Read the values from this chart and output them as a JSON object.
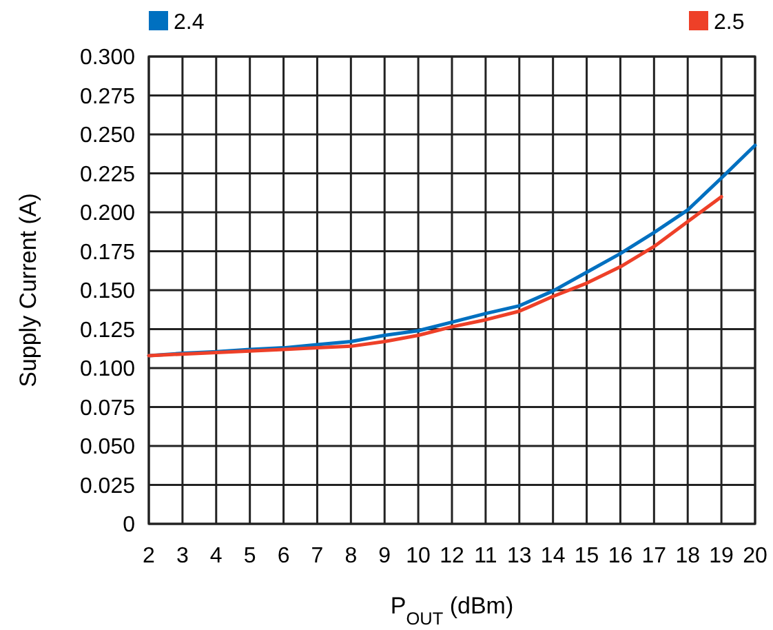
{
  "chart_data": {
    "type": "line",
    "xlabel": "P$_{OUT}$ (dBm)",
    "ylabel": "Supply Current (A)",
    "categories": [
      "2",
      "3",
      "4",
      "5",
      "6",
      "7",
      "8",
      "9",
      "10",
      "12",
      "11",
      "13",
      "14",
      "15",
      "16",
      "17",
      "18",
      "19",
      "20"
    ],
    "series": [
      {
        "name": "2.4",
        "color": "#0070c0",
        "values": [
          0.108,
          0.1095,
          0.1105,
          0.112,
          0.113,
          0.115,
          0.117,
          0.121,
          0.124,
          0.1295,
          0.135,
          0.14,
          0.1495,
          0.1615,
          0.1735,
          0.187,
          0.2015,
          0.222,
          0.243
        ]
      },
      {
        "name": "2.5",
        "color": "#ee4028",
        "values": [
          0.108,
          0.109,
          0.11,
          0.111,
          0.112,
          0.113,
          0.114,
          0.117,
          0.121,
          0.1265,
          0.131,
          0.1365,
          0.146,
          0.1545,
          0.165,
          0.178,
          0.194,
          0.21,
          null
        ]
      }
    ],
    "ylim": [
      0,
      0.3
    ],
    "yticks": [
      {
        "value": 0,
        "label": "0"
      },
      {
        "value": 0.025,
        "label": "0.025"
      },
      {
        "value": 0.05,
        "label": "0.050"
      },
      {
        "value": 0.075,
        "label": "0.075"
      },
      {
        "value": 0.1,
        "label": "0.100"
      },
      {
        "value": 0.125,
        "label": "0.125"
      },
      {
        "value": 0.15,
        "label": "0.150"
      },
      {
        "value": 0.175,
        "label": "0.175"
      },
      {
        "value": 0.2,
        "label": "0.200"
      },
      {
        "value": 0.225,
        "label": "0.225"
      },
      {
        "value": 0.25,
        "label": "0.250"
      },
      {
        "value": 0.275,
        "label": "0.275"
      },
      {
        "value": 0.3,
        "label": "0.300"
      }
    ],
    "grid": true,
    "legend": "top",
    "line_style": "solid",
    "marker": "none"
  }
}
